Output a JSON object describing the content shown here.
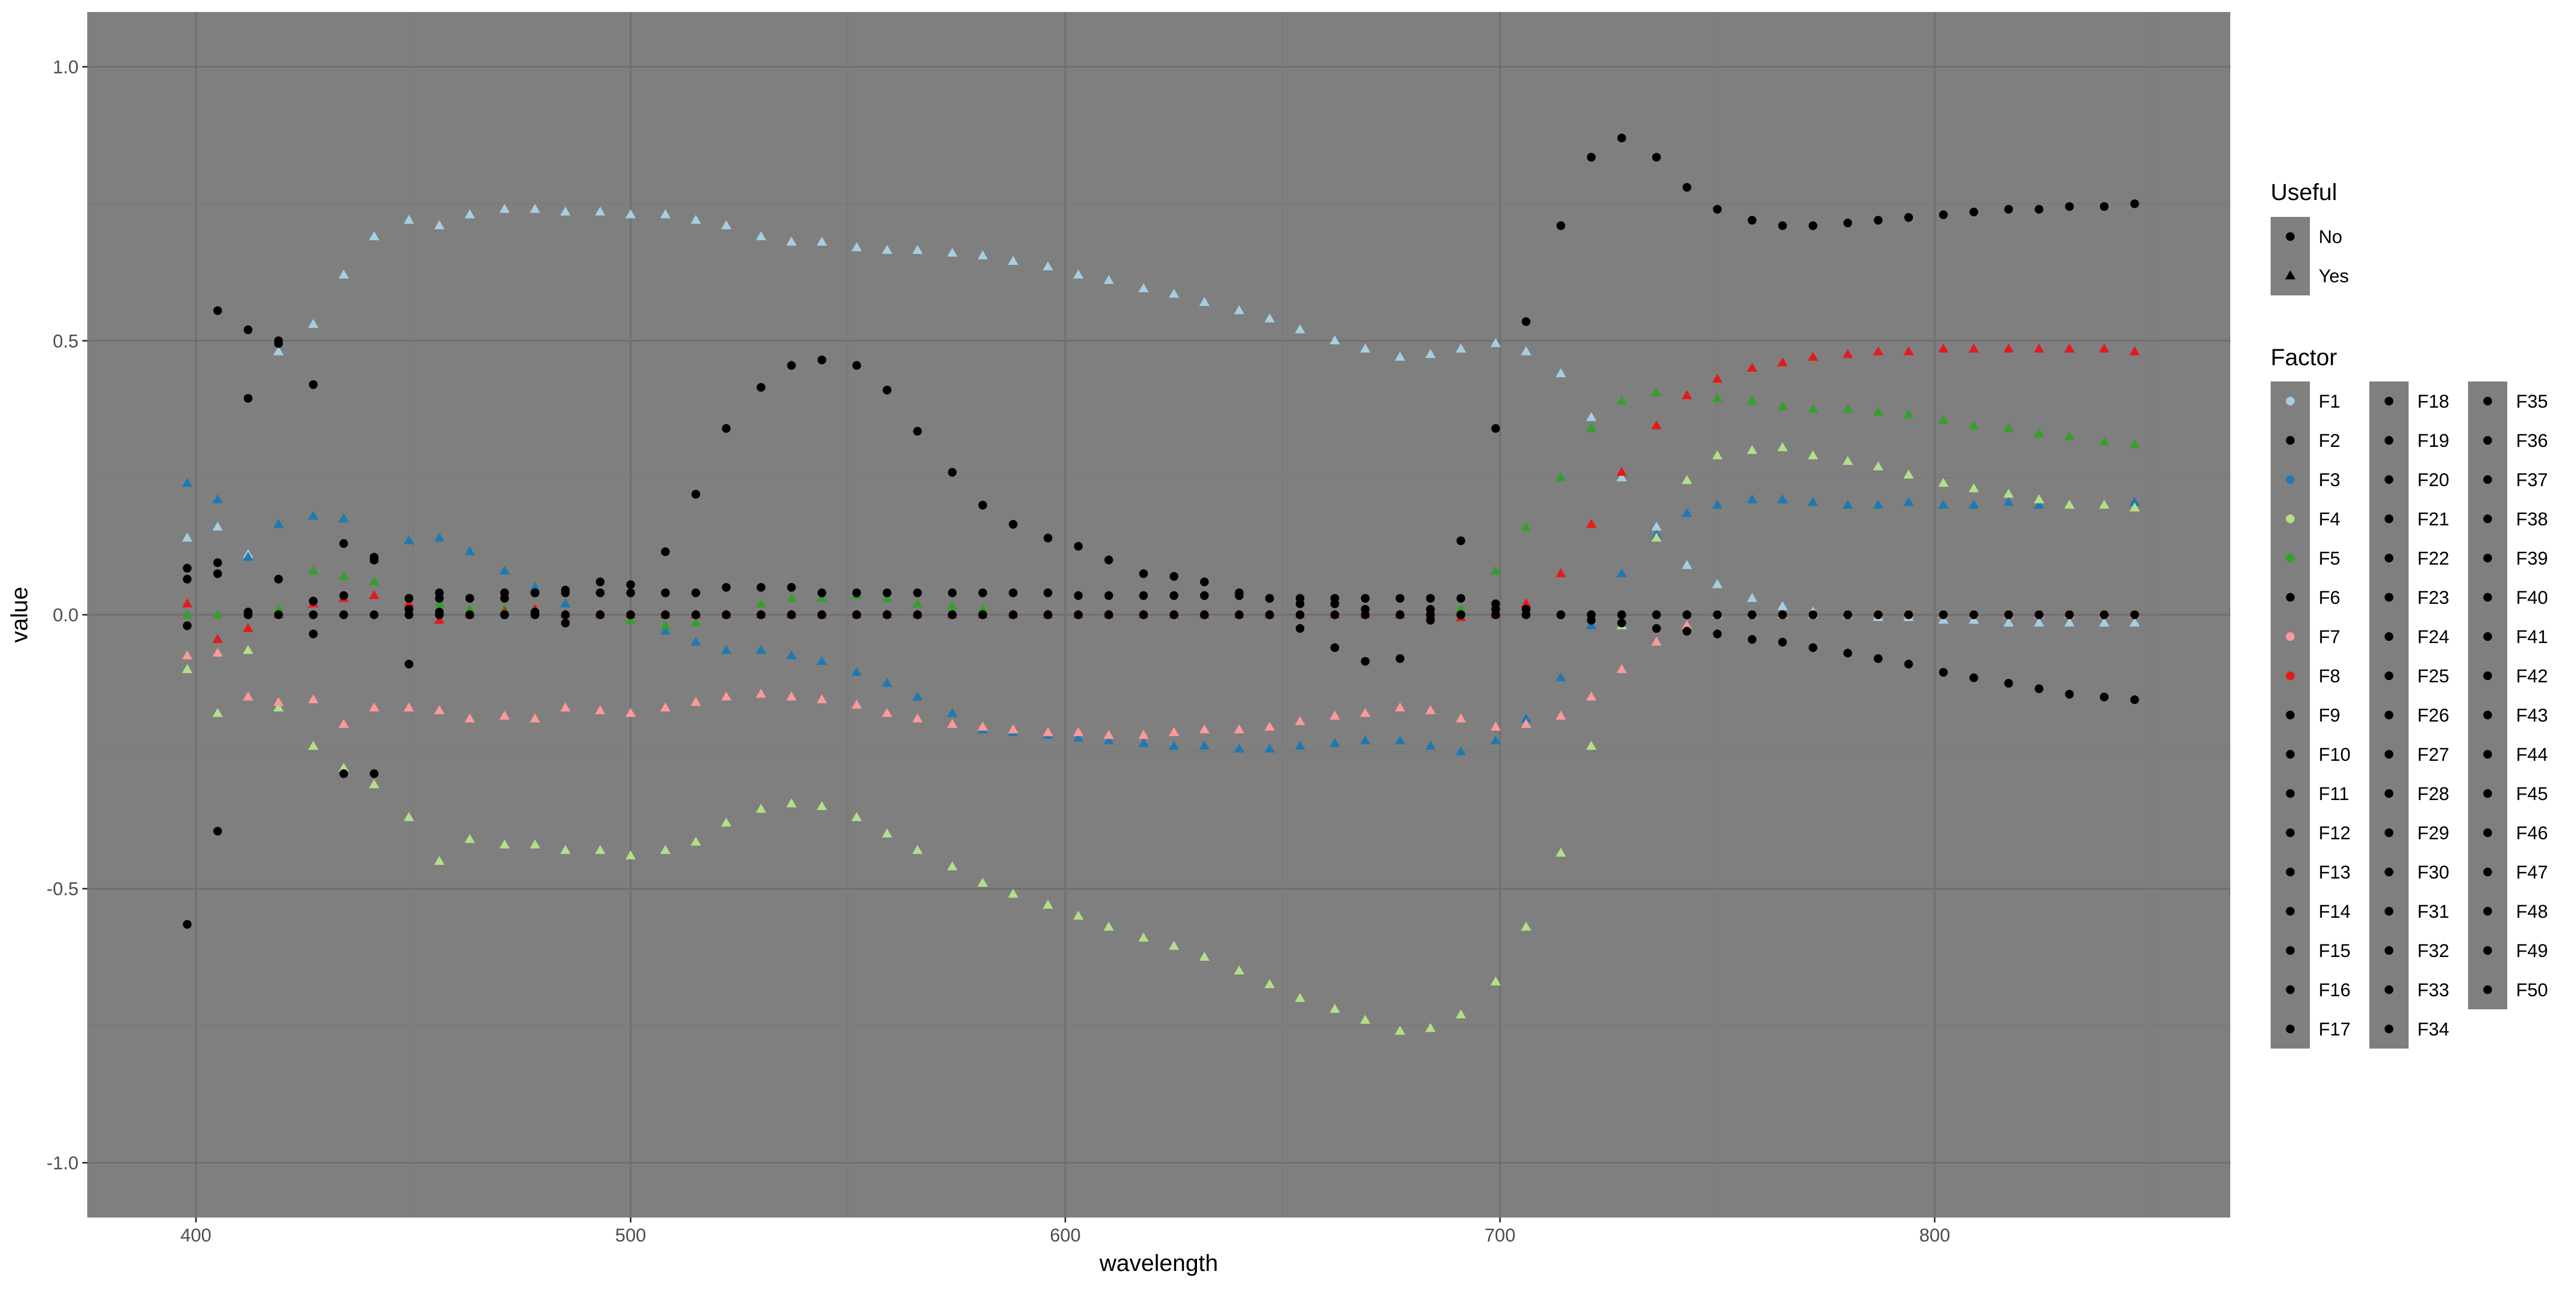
{
  "chart_data": {
    "type": "scatter",
    "xlabel": "wavelength",
    "ylabel": "value",
    "xlim": [
      375,
      868
    ],
    "ylim": [
      -1.1,
      1.1
    ],
    "x_ticks": [
      400,
      500,
      600,
      700,
      800
    ],
    "y_ticks": [
      1.0,
      0.5,
      0.0,
      -0.5,
      -1.0
    ],
    "x_tick_labels": [
      "400",
      "500",
      "600",
      "700",
      "800"
    ],
    "y_tick_labels": [
      "1.0",
      "0.5",
      "0.0",
      "-0.5",
      "-1.0"
    ],
    "grid": true,
    "panel_background": "#7f7f7f",
    "grid_color": "#6e6e6e",
    "legend_position": "right",
    "legend_shape": {
      "title": "Useful",
      "entries": [
        {
          "label": "No",
          "shape": "circle"
        },
        {
          "label": "Yes",
          "shape": "triangle"
        }
      ]
    },
    "legend_color": {
      "title": "Factor",
      "entries": [
        {
          "label": "F1",
          "color": "#a6cee3"
        },
        {
          "label": "F2",
          "color": "#000000"
        },
        {
          "label": "F3",
          "color": "#1f78b4"
        },
        {
          "label": "F4",
          "color": "#b2df8a"
        },
        {
          "label": "F5",
          "color": "#33a02c"
        },
        {
          "label": "F6",
          "color": "#000000"
        },
        {
          "label": "F7",
          "color": "#fb9a99"
        },
        {
          "label": "F8",
          "color": "#e31a1c"
        },
        {
          "label": "F9",
          "color": "#000000"
        },
        {
          "label": "F10",
          "color": "#000000"
        },
        {
          "label": "F11",
          "color": "#000000"
        },
        {
          "label": "F12",
          "color": "#000000"
        },
        {
          "label": "F13",
          "color": "#000000"
        },
        {
          "label": "F14",
          "color": "#000000"
        },
        {
          "label": "F15",
          "color": "#000000"
        },
        {
          "label": "F16",
          "color": "#000000"
        },
        {
          "label": "F17",
          "color": "#000000"
        },
        {
          "label": "F18",
          "color": "#000000"
        },
        {
          "label": "F19",
          "color": "#000000"
        },
        {
          "label": "F20",
          "color": "#000000"
        },
        {
          "label": "F21",
          "color": "#000000"
        },
        {
          "label": "F22",
          "color": "#000000"
        },
        {
          "label": "F23",
          "color": "#000000"
        },
        {
          "label": "F24",
          "color": "#000000"
        },
        {
          "label": "F25",
          "color": "#000000"
        },
        {
          "label": "F26",
          "color": "#000000"
        },
        {
          "label": "F27",
          "color": "#000000"
        },
        {
          "label": "F28",
          "color": "#000000"
        },
        {
          "label": "F29",
          "color": "#000000"
        },
        {
          "label": "F30",
          "color": "#000000"
        },
        {
          "label": "F31",
          "color": "#000000"
        },
        {
          "label": "F32",
          "color": "#000000"
        },
        {
          "label": "F33",
          "color": "#000000"
        },
        {
          "label": "F34",
          "color": "#000000"
        },
        {
          "label": "F35",
          "color": "#000000"
        },
        {
          "label": "F36",
          "color": "#000000"
        },
        {
          "label": "F37",
          "color": "#000000"
        },
        {
          "label": "F38",
          "color": "#000000"
        },
        {
          "label": "F39",
          "color": "#000000"
        },
        {
          "label": "F40",
          "color": "#000000"
        },
        {
          "label": "F41",
          "color": "#000000"
        },
        {
          "label": "F42",
          "color": "#000000"
        },
        {
          "label": "F43",
          "color": "#000000"
        },
        {
          "label": "F44",
          "color": "#000000"
        },
        {
          "label": "F45",
          "color": "#000000"
        },
        {
          "label": "F46",
          "color": "#000000"
        },
        {
          "label": "F47",
          "color": "#000000"
        },
        {
          "label": "F48",
          "color": "#000000"
        },
        {
          "label": "F49",
          "color": "#000000"
        },
        {
          "label": "F50",
          "color": "#000000"
        }
      ]
    },
    "x": [
      398,
      405,
      412,
      419,
      427,
      434,
      441,
      449,
      456,
      463,
      471,
      478,
      485,
      493,
      500,
      508,
      515,
      522,
      530,
      537,
      544,
      552,
      559,
      566,
      574,
      581,
      588,
      596,
      603,
      610,
      618,
      625,
      632,
      640,
      647,
      654,
      662,
      669,
      677,
      684,
      691,
      699,
      706,
      714,
      721,
      728,
      736,
      743,
      750,
      758,
      765,
      772,
      780,
      787,
      794,
      802,
      809,
      817,
      824,
      831,
      839,
      846
    ],
    "series": [
      {
        "name": "F1",
        "color": "#a6cee3",
        "shape": "triangle",
        "values": [
          0.14,
          0.16,
          0.11,
          0.48,
          0.53,
          0.62,
          0.69,
          0.72,
          0.71,
          0.73,
          0.74,
          0.74,
          0.735,
          0.735,
          0.73,
          0.73,
          0.72,
          0.71,
          0.69,
          0.68,
          0.68,
          0.67,
          0.665,
          0.665,
          0.66,
          0.655,
          0.645,
          0.635,
          0.62,
          0.61,
          0.595,
          0.585,
          0.57,
          0.555,
          0.54,
          0.52,
          0.5,
          0.485,
          0.47,
          0.475,
          0.485,
          0.495,
          0.48,
          0.44,
          0.36,
          0.25,
          0.16,
          0.09,
          0.055,
          0.03,
          0.015,
          0.005,
          0.0,
          -0.005,
          -0.005,
          -0.01,
          -0.01,
          -0.015,
          -0.015,
          -0.015,
          -0.015,
          -0.015
        ]
      },
      {
        "name": "F3",
        "color": "#1f78b4",
        "shape": "triangle",
        "values": [
          0.24,
          0.21,
          0.105,
          0.165,
          0.18,
          0.175,
          0.1,
          0.135,
          0.14,
          0.115,
          0.08,
          0.05,
          0.02,
          0.0,
          -0.01,
          -0.03,
          -0.05,
          -0.065,
          -0.065,
          -0.075,
          -0.085,
          -0.105,
          -0.125,
          -0.15,
          -0.18,
          -0.21,
          -0.215,
          -0.22,
          -0.225,
          -0.23,
          -0.235,
          -0.24,
          -0.24,
          -0.245,
          -0.245,
          -0.24,
          -0.235,
          -0.23,
          -0.23,
          -0.24,
          -0.25,
          -0.23,
          -0.19,
          -0.115,
          -0.02,
          0.075,
          0.145,
          0.185,
          0.2,
          0.21,
          0.21,
          0.205,
          0.2,
          0.2,
          0.205,
          0.2,
          0.2,
          0.205,
          0.2,
          0.2,
          0.2,
          0.205
        ]
      },
      {
        "name": "F4",
        "color": "#b2df8a",
        "shape": "triangle",
        "values": [
          -0.1,
          -0.18,
          -0.065,
          -0.17,
          -0.24,
          -0.28,
          -0.31,
          -0.37,
          -0.45,
          -0.41,
          -0.42,
          -0.42,
          -0.43,
          -0.43,
          -0.44,
          -0.43,
          -0.415,
          -0.38,
          -0.355,
          -0.345,
          -0.35,
          -0.37,
          -0.4,
          -0.43,
          -0.46,
          -0.49,
          -0.51,
          -0.53,
          -0.55,
          -0.57,
          -0.59,
          -0.605,
          -0.625,
          -0.65,
          -0.675,
          -0.7,
          -0.72,
          -0.74,
          -0.76,
          -0.755,
          -0.73,
          -0.67,
          -0.57,
          -0.435,
          -0.24,
          -0.02,
          0.14,
          0.245,
          0.29,
          0.3,
          0.305,
          0.29,
          0.28,
          0.27,
          0.255,
          0.24,
          0.23,
          0.22,
          0.21,
          0.2,
          0.2,
          0.195
        ]
      },
      {
        "name": "F5",
        "color": "#33a02c",
        "shape": "triangle",
        "values": [
          0.0,
          0.0,
          0.0,
          0.01,
          0.08,
          0.07,
          0.06,
          0.03,
          0.02,
          0.01,
          0.01,
          0.0,
          0.0,
          0.0,
          -0.01,
          -0.02,
          -0.015,
          0.0,
          0.02,
          0.03,
          0.03,
          0.035,
          0.03,
          0.02,
          0.015,
          0.01,
          0.0,
          0.0,
          0.0,
          0.0,
          0.0,
          0.0,
          0.0,
          0.0,
          0.0,
          0.0,
          0.0,
          0.0,
          0.0,
          0.0,
          0.01,
          0.08,
          0.16,
          0.25,
          0.34,
          0.39,
          0.405,
          0.4,
          0.395,
          0.39,
          0.38,
          0.375,
          0.375,
          0.37,
          0.365,
          0.355,
          0.345,
          0.34,
          0.33,
          0.325,
          0.315,
          0.31
        ]
      },
      {
        "name": "F7",
        "color": "#fb9a99",
        "shape": "triangle",
        "values": [
          -0.075,
          -0.07,
          -0.15,
          -0.16,
          -0.155,
          -0.2,
          -0.17,
          -0.17,
          -0.175,
          -0.19,
          -0.185,
          -0.19,
          -0.17,
          -0.175,
          -0.18,
          -0.17,
          -0.16,
          -0.15,
          -0.145,
          -0.15,
          -0.155,
          -0.165,
          -0.18,
          -0.19,
          -0.2,
          -0.205,
          -0.21,
          -0.215,
          -0.215,
          -0.22,
          -0.22,
          -0.215,
          -0.21,
          -0.21,
          -0.205,
          -0.195,
          -0.185,
          -0.18,
          -0.17,
          -0.175,
          -0.19,
          -0.205,
          -0.2,
          -0.185,
          -0.15,
          -0.1,
          -0.05,
          -0.02,
          0.0,
          0.0,
          0.0,
          0.0,
          0.0,
          0.0,
          0.0,
          0.0,
          0.0,
          0.0,
          0.0,
          0.0,
          0.0,
          0.0
        ]
      },
      {
        "name": "F8",
        "color": "#e31a1c",
        "shape": "triangle",
        "values": [
          0.02,
          -0.045,
          -0.025,
          0.0,
          0.02,
          0.03,
          0.035,
          0.02,
          -0.01,
          0.0,
          0.005,
          0.01,
          0.0,
          0.0,
          0.0,
          0.0,
          0.0,
          0.0,
          0.0,
          0.0,
          0.0,
          0.0,
          0.0,
          0.0,
          0.0,
          0.0,
          0.0,
          0.0,
          0.0,
          0.0,
          0.0,
          0.0,
          0.0,
          0.0,
          0.0,
          0.0,
          0.0,
          0.0,
          0.0,
          0.0,
          -0.005,
          0.0,
          0.02,
          0.075,
          0.165,
          0.26,
          0.345,
          0.4,
          0.43,
          0.45,
          0.46,
          0.47,
          0.475,
          0.48,
          0.48,
          0.485,
          0.485,
          0.485,
          0.485,
          0.485,
          0.485,
          0.48
        ]
      },
      {
        "name": "F2",
        "color": "#000000",
        "shape": "circle",
        "values": [
          -0.565,
          0.555,
          0.52,
          0.5,
          0.42,
          -0.29,
          -0.29,
          -0.09,
          0.03,
          0.03,
          0.03,
          0.04,
          0.04,
          0.04,
          0.04,
          0.04,
          0.04,
          0.05,
          0.05,
          0.05,
          0.04,
          0.04,
          0.04,
          0.04,
          0.04,
          0.04,
          0.04,
          0.04,
          0.035,
          0.035,
          0.035,
          0.035,
          0.035,
          0.035,
          0.03,
          0.03,
          0.03,
          0.03,
          0.03,
          0.03,
          0.03,
          0.02,
          0.535,
          0.71,
          0.835,
          0.87,
          0.835,
          0.78,
          0.74,
          0.72,
          0.71,
          0.71,
          0.715,
          0.72,
          0.725,
          0.73,
          0.735,
          0.74,
          0.74,
          0.745,
          0.745,
          0.75
        ]
      },
      {
        "name": "F6",
        "color": "#000000",
        "shape": "circle",
        "values": [
          0.085,
          -0.395,
          0.395,
          0.495,
          0.025,
          0.13,
          0.105,
          0.03,
          0.04,
          0.03,
          0.04,
          0.04,
          0.045,
          0.06,
          0.055,
          0.115,
          0.22,
          0.34,
          0.415,
          0.455,
          0.465,
          0.455,
          0.41,
          0.335,
          0.26,
          0.2,
          0.165,
          0.14,
          0.125,
          0.1,
          0.075,
          0.07,
          0.06,
          0.04,
          0.03,
          0.02,
          0.02,
          0.01,
          0.0,
          0.01,
          0.135,
          0.34,
          0.0,
          0.0,
          0.0,
          0.0,
          0.0,
          0.0,
          0.0,
          0.0,
          0.0,
          0.0,
          0.0,
          0.0,
          0.0,
          0.0,
          0.0,
          0.0,
          0.0,
          0.0,
          0.0,
          0.0
        ]
      },
      {
        "name": "F9",
        "color": "#000000",
        "shape": "circle",
        "values": [
          0.065,
          0.075,
          0.005,
          0.065,
          -0.035,
          0.035,
          0.1,
          0.0,
          0.005,
          0.0,
          0.0,
          0.005,
          0.0,
          0.0,
          0.0,
          0.0,
          0.0,
          0.0,
          0.0,
          0.0,
          0.0,
          0.0,
          0.0,
          0.0,
          0.0,
          0.0,
          0.0,
          0.0,
          0.0,
          0.0,
          0.0,
          0.0,
          0.0,
          0.0,
          0.0,
          -0.025,
          -0.06,
          -0.085,
          -0.08,
          -0.01,
          0.0,
          0.01,
          0.01,
          0.0,
          -0.01,
          -0.015,
          -0.025,
          -0.03,
          -0.035,
          -0.045,
          -0.05,
          -0.06,
          -0.07,
          -0.08,
          -0.09,
          -0.105,
          -0.115,
          -0.125,
          -0.135,
          -0.145,
          -0.15,
          -0.155
        ]
      },
      {
        "name": "F10",
        "color": "#000000",
        "shape": "circle",
        "values": [
          -0.02,
          0.095,
          0.0,
          0.0,
          0.0,
          0.0,
          0.0,
          0.01,
          0.0,
          0.0,
          0.0,
          0.0,
          -0.015,
          0.0,
          0.0,
          0.0,
          0.0,
          0.0,
          0.0,
          0.0,
          0.0,
          0.0,
          0.0,
          0.0,
          0.0,
          0.0,
          0.0,
          0.0,
          0.0,
          0.0,
          0.0,
          0.0,
          0.0,
          0.0,
          0.0,
          0.0,
          0.0,
          0.0,
          0.0,
          0.0,
          0.0,
          0.0,
          0.0,
          0.0,
          0.0,
          0.0,
          0.0,
          0.0,
          0.0,
          0.0,
          0.0,
          0.0,
          0.0,
          0.0,
          0.0,
          0.0,
          0.0,
          0.0,
          0.0,
          0.0,
          0.0,
          0.0
        ]
      }
    ]
  }
}
